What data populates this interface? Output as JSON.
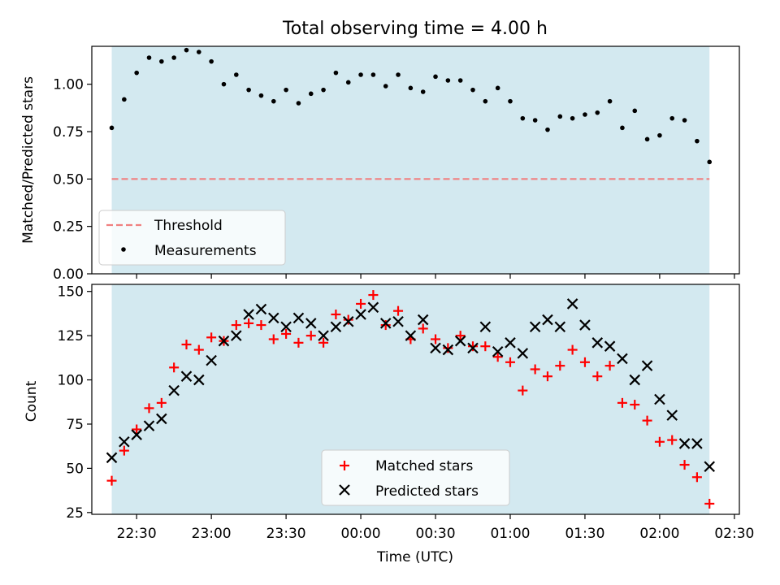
{
  "chart_data": [
    {
      "type": "scatter",
      "title": "Total observing time = 4.00 h",
      "ylabel": "Matched/Predicted stars",
      "xlabel": "",
      "x_axis": "time",
      "xlim": [
        "22:12",
        "02:32"
      ],
      "ylim": [
        0,
        1.2
      ],
      "yticks": [
        0,
        0.25,
        0.5,
        0.75,
        1.0
      ],
      "ytick_labels": [
        "0.00",
        "0.25",
        "0.50",
        "0.75",
        "1.00"
      ],
      "observing_window": [
        "22:20",
        "02:20"
      ],
      "threshold": 0.5,
      "legend": {
        "placement": "lower-left",
        "entries": [
          "Threshold",
          "Measurements"
        ]
      },
      "x": [
        "22:20",
        "22:25",
        "22:30",
        "22:35",
        "22:40",
        "22:45",
        "22:50",
        "22:55",
        "23:00",
        "23:05",
        "23:10",
        "23:15",
        "23:20",
        "23:25",
        "23:30",
        "23:35",
        "23:40",
        "23:45",
        "23:50",
        "23:55",
        "00:00",
        "00:05",
        "00:10",
        "00:15",
        "00:20",
        "00:25",
        "00:30",
        "00:35",
        "00:40",
        "00:45",
        "00:50",
        "00:55",
        "01:00",
        "01:05",
        "01:10",
        "01:15",
        "01:20",
        "01:25",
        "01:30",
        "01:35",
        "01:40",
        "01:45",
        "01:50",
        "01:55",
        "02:00",
        "02:05",
        "02:10",
        "02:15",
        "02:20"
      ],
      "series": [
        {
          "name": "Measurements",
          "color": "#000000",
          "marker": "dot",
          "values": [
            0.77,
            0.92,
            1.06,
            1.14,
            1.12,
            1.14,
            1.18,
            1.17,
            1.12,
            1.0,
            1.05,
            0.97,
            0.94,
            0.91,
            0.97,
            0.9,
            0.95,
            0.97,
            1.06,
            1.01,
            1.05,
            1.05,
            0.99,
            1.05,
            0.98,
            0.96,
            1.04,
            1.02,
            1.02,
            0.97,
            0.91,
            0.98,
            0.91,
            0.82,
            0.81,
            0.76,
            0.83,
            0.82,
            0.84,
            0.85,
            0.91,
            0.77,
            0.86,
            0.71,
            0.73,
            0.82,
            0.81,
            0.7,
            0.59
          ]
        }
      ]
    },
    {
      "type": "scatter",
      "title": "",
      "ylabel": "Count",
      "xlabel": "Time (UTC)",
      "x_axis": "time",
      "xlim": [
        "22:12",
        "02:32"
      ],
      "ylim": [
        24,
        154
      ],
      "yticks": [
        25,
        50,
        75,
        100,
        125,
        150
      ],
      "ytick_labels": [
        "25",
        "50",
        "75",
        "100",
        "125",
        "150"
      ],
      "xticks": [
        "22:30",
        "23:00",
        "23:30",
        "00:00",
        "00:30",
        "01:00",
        "01:30",
        "02:00",
        "02:30"
      ],
      "observing_window": [
        "22:20",
        "02:20"
      ],
      "legend": {
        "placement": "lower-center",
        "entries": [
          "Matched stars",
          "Predicted stars"
        ]
      },
      "x": [
        "22:20",
        "22:25",
        "22:30",
        "22:35",
        "22:40",
        "22:45",
        "22:50",
        "22:55",
        "23:00",
        "23:05",
        "23:10",
        "23:15",
        "23:20",
        "23:25",
        "23:30",
        "23:35",
        "23:40",
        "23:45",
        "23:50",
        "23:55",
        "00:00",
        "00:05",
        "00:10",
        "00:15",
        "00:20",
        "00:25",
        "00:30",
        "00:35",
        "00:40",
        "00:45",
        "00:50",
        "00:55",
        "01:00",
        "01:05",
        "01:10",
        "01:15",
        "01:20",
        "01:25",
        "01:30",
        "01:35",
        "01:40",
        "01:45",
        "01:50",
        "01:55",
        "02:00",
        "02:05",
        "02:10",
        "02:15",
        "02:20"
      ],
      "series": [
        {
          "name": "Matched stars",
          "color": "#ff0000",
          "marker": "plus",
          "values": [
            43,
            60,
            72,
            84,
            87,
            107,
            120,
            117,
            124,
            122,
            131,
            132,
            131,
            123,
            126,
            121,
            125,
            121,
            137,
            134,
            143,
            148,
            131,
            139,
            123,
            129,
            123,
            118,
            125,
            119,
            119,
            113,
            110,
            94,
            106,
            102,
            108,
            117,
            110,
            102,
            108,
            87,
            86,
            77,
            65,
            66,
            52,
            45,
            30
          ]
        },
        {
          "name": "Predicted stars",
          "color": "#000000",
          "marker": "x",
          "values": [
            56,
            65,
            69,
            74,
            78,
            94,
            102,
            100,
            111,
            122,
            125,
            137,
            140,
            135,
            130,
            135,
            132,
            125,
            130,
            133,
            137,
            141,
            132,
            133,
            125,
            134,
            118,
            117,
            122,
            118,
            130,
            116,
            121,
            115,
            130,
            134,
            130,
            143,
            131,
            121,
            119,
            112,
            100,
            108,
            89,
            80,
            64,
            64,
            51
          ]
        }
      ]
    }
  ]
}
